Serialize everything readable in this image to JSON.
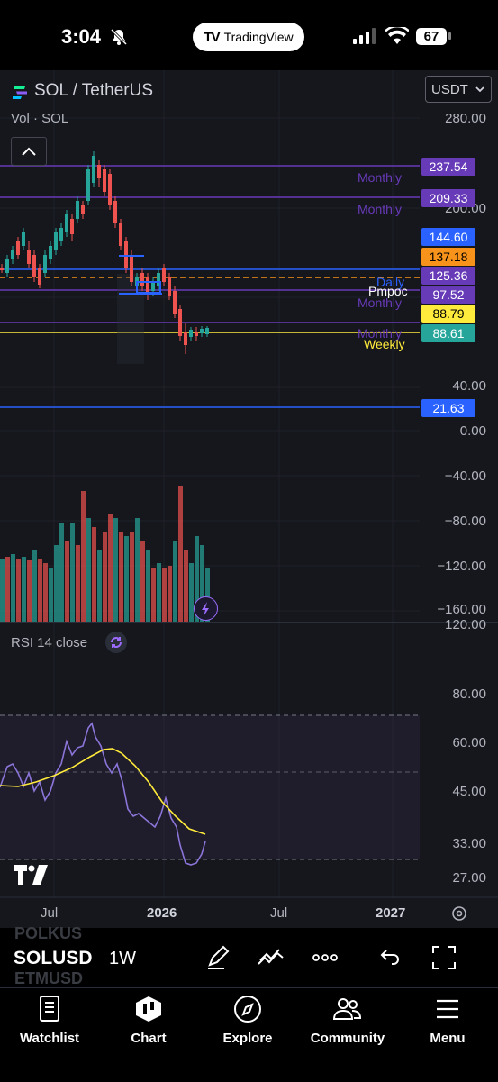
{
  "status_bar": {
    "time": "3:04",
    "app_pill": "TradingView",
    "battery": "67"
  },
  "header": {
    "symbol_title": "SOL / TetherUS",
    "volume_label": "Vol · SOL",
    "currency": "USDT"
  },
  "price_axis": [
    "280.00",
    "200.00",
    "40.00",
    "0.00",
    "−40.00",
    "−80.00",
    "−120.00",
    "−160.00"
  ],
  "price_tags": [
    {
      "value": "237.54",
      "color": "#673ab7",
      "text_color": "#ffffff"
    },
    {
      "value": "209.33",
      "color": "#673ab7",
      "text_color": "#ffffff"
    },
    {
      "value": "144.60",
      "color": "#2962ff",
      "text_color": "#ffffff"
    },
    {
      "value": "137.18",
      "color": "#f7931a",
      "text_color": "#000000"
    },
    {
      "value": "125.36",
      "color": "#673ab7",
      "text_color": "#ffffff"
    },
    {
      "value": "97.52",
      "color": "#673ab7",
      "text_color": "#ffffff"
    },
    {
      "value": "88.79",
      "color": "#ffeb3b",
      "text_color": "#000000"
    },
    {
      "value": "88.61",
      "color": "#26a69a",
      "text_color": "#ffffff"
    },
    {
      "value": "21.63",
      "color": "#2962ff",
      "text_color": "#ffffff"
    }
  ],
  "line_labels": {
    "monthly_1": "Monthly",
    "monthly_2": "Monthly",
    "daily": "Daily",
    "pmpoc": "Pmpoc",
    "monthly_3": "Monthly",
    "monthly_4": "Monthly",
    "weekly": "Weekly"
  },
  "rsi": {
    "label": "RSI 14 close",
    "axis": [
      "120.00",
      "80.00",
      "60.00",
      "45.00",
      "33.00",
      "27.00"
    ]
  },
  "time_axis": [
    "Jul",
    "2026",
    "Jul",
    "2027"
  ],
  "toolbar": {
    "ghost_top": "POLKUS",
    "symbol": "SOLUSD",
    "ghost_bottom": "ETMUSD",
    "interval": "1W"
  },
  "tabs": [
    {
      "label": "Watchlist",
      "icon": "watchlist-icon"
    },
    {
      "label": "Chart",
      "icon": "chart-icon"
    },
    {
      "label": "Explore",
      "icon": "compass-icon"
    },
    {
      "label": "Community",
      "icon": "community-icon"
    },
    {
      "label": "Menu",
      "icon": "menu-icon"
    }
  ],
  "colors": {
    "up": "#26a69a",
    "down": "#ef5350",
    "monthly": "#673ab7",
    "blue": "#2962ff",
    "yellow": "#ffeb3b",
    "orange": "#f7931a",
    "rsi": "#7e57c2",
    "rsi_ma": "#ffeb3b"
  }
}
